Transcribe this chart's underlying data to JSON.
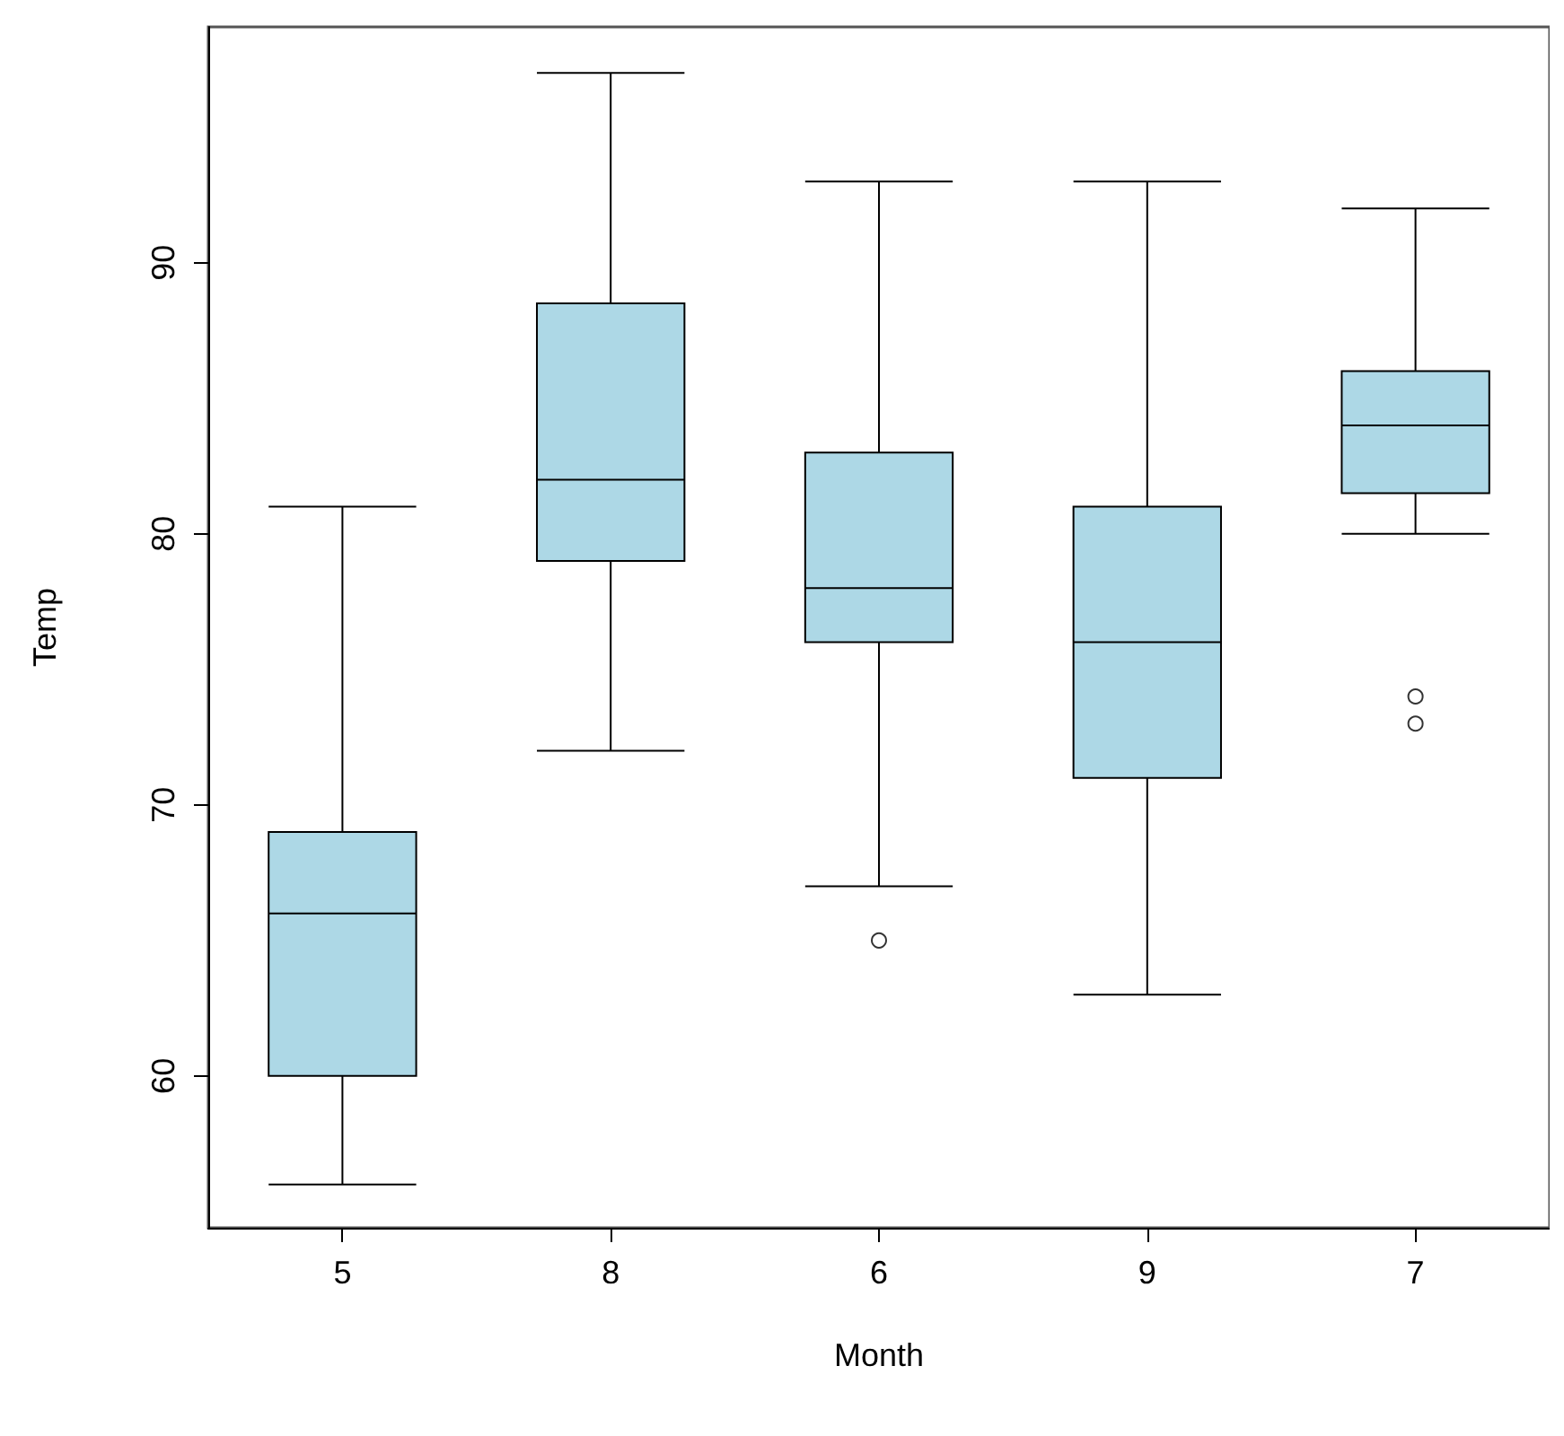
{
  "chart_data": {
    "type": "box",
    "xlabel": "Month",
    "ylabel": "Temp",
    "categories": [
      "5",
      "8",
      "6",
      "9",
      "7"
    ],
    "series": [
      {
        "color": "#add8e6",
        "boxes": [
          {
            "low": 56,
            "q1": 60,
            "median": 66,
            "q3": 69,
            "high": 81
          },
          {
            "low": 72,
            "q1": 79,
            "median": 82,
            "q3": 88.5,
            "high": 97
          },
          {
            "low": 67,
            "q1": 76,
            "median": 78,
            "q3": 83,
            "high": 93,
            "outliers": [
              65
            ]
          },
          {
            "low": 63,
            "q1": 71,
            "median": 76,
            "q3": 81,
            "high": 93
          },
          {
            "low": 80,
            "q1": 81.5,
            "median": 84,
            "q3": 86,
            "high": 92,
            "outliers": [
              73,
              74
            ]
          }
        ]
      }
    ],
    "ylim": [
      54.4,
      98.7
    ],
    "yticks": [
      60,
      70,
      80,
      90
    ]
  }
}
